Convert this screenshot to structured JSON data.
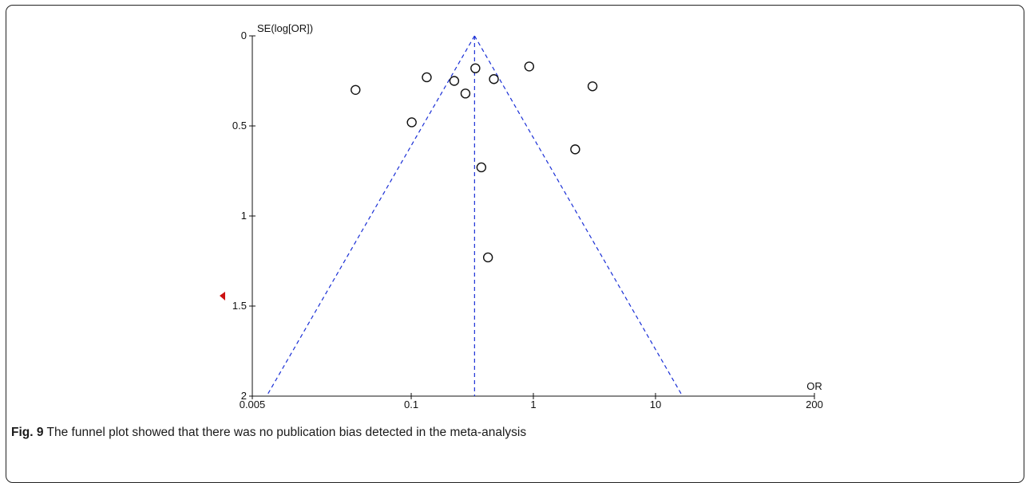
{
  "caption": {
    "label": "Fig. 9",
    "text": "The funnel plot showed that there was no publication bias detected in the meta-analysis"
  },
  "chart_data": {
    "type": "scatter",
    "title": "",
    "ylabel": "SE(log[OR])",
    "xlabel": "OR",
    "x_scale": "log",
    "y_inverted": true,
    "xlim": [
      0.005,
      200
    ],
    "ylim": [
      0,
      2
    ],
    "x_ticks": [
      {
        "value": 0.005,
        "label": "0.005"
      },
      {
        "value": 0.1,
        "label": "0.1"
      },
      {
        "value": 1,
        "label": "1"
      },
      {
        "value": 10,
        "label": "10"
      },
      {
        "value": 200,
        "label": "200"
      }
    ],
    "y_ticks": [
      {
        "value": 0,
        "label": "0"
      },
      {
        "value": 0.5,
        "label": "0.5"
      },
      {
        "value": 1,
        "label": "1"
      },
      {
        "value": 1.5,
        "label": "1.5"
      },
      {
        "value": 2,
        "label": "2"
      }
    ],
    "pooled_or": 0.33,
    "funnel_limits": "95% pseudo confidence limits (dashed lines)",
    "points": [
      {
        "or": 0.035,
        "se": 0.3
      },
      {
        "or": 0.101,
        "se": 0.48
      },
      {
        "or": 0.134,
        "se": 0.23
      },
      {
        "or": 0.225,
        "se": 0.25
      },
      {
        "or": 0.278,
        "se": 0.32
      },
      {
        "or": 0.335,
        "se": 0.18
      },
      {
        "or": 0.375,
        "se": 0.73
      },
      {
        "or": 0.425,
        "se": 1.23
      },
      {
        "or": 0.475,
        "se": 0.24
      },
      {
        "or": 0.925,
        "se": 0.17
      },
      {
        "or": 2.2,
        "se": 0.63
      },
      {
        "or": 3.05,
        "se": 0.28
      }
    ],
    "colors": {
      "funnel": "#1a2fd6",
      "points": "#111111",
      "axis": "#111111",
      "marker": "#cc1111"
    }
  }
}
